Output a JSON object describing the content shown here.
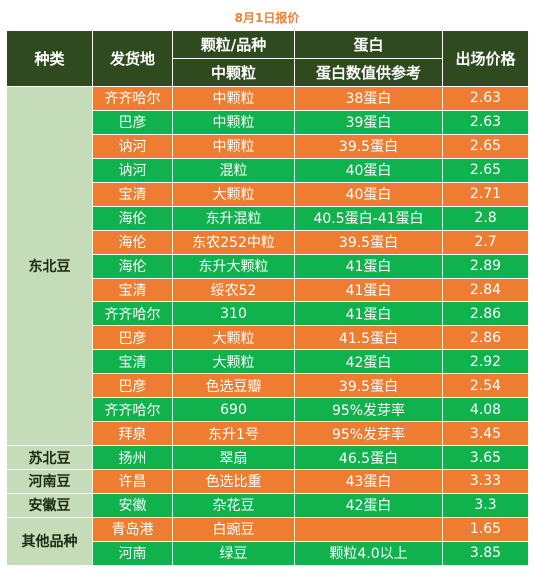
{
  "title": "8月1日报价",
  "header": {
    "type": "种类",
    "origin": "发货地",
    "grain_top": "颗粒/品种",
    "grain_sub": "中颗粒",
    "protein_top": "蛋白",
    "protein_sub": "蛋白数值供参考",
    "price": "出场价格"
  },
  "groups": [
    {
      "category": "东北豆",
      "rows": [
        {
          "origin": "齐齐哈尔",
          "grain": "中颗粒",
          "protein": "38蛋白",
          "price": "2.63",
          "color": "orange"
        },
        {
          "origin": "巴彦",
          "grain": "中颗粒",
          "protein": "39蛋白",
          "price": "2.63",
          "color": "green"
        },
        {
          "origin": "讷河",
          "grain": "中颗粒",
          "protein": "39.5蛋白",
          "price": "2.65",
          "color": "orange"
        },
        {
          "origin": "讷河",
          "grain": "混粒",
          "protein": "40蛋白",
          "price": "2.65",
          "color": "green"
        },
        {
          "origin": "宝清",
          "grain": "大颗粒",
          "protein": "40蛋白",
          "price": "2.71",
          "color": "orange"
        },
        {
          "origin": "海伦",
          "grain": "东升混粒",
          "protein": "40.5蛋白-41蛋白",
          "price": "2.8",
          "color": "green"
        },
        {
          "origin": "海伦",
          "grain": "东农252中粒",
          "protein": "39.5蛋白",
          "price": "2.7",
          "color": "orange"
        },
        {
          "origin": "海伦",
          "grain": "东升大颗粒",
          "protein": "41蛋白",
          "price": "2.89",
          "color": "green"
        },
        {
          "origin": "宝清",
          "grain": "绥农52",
          "protein": "41蛋白",
          "price": "2.84",
          "color": "orange"
        },
        {
          "origin": "齐齐哈尔",
          "grain": "310",
          "protein": "41蛋白",
          "price": "2.86",
          "color": "green"
        },
        {
          "origin": "巴彦",
          "grain": "大颗粒",
          "protein": "41.5蛋白",
          "price": "2.86",
          "color": "orange"
        },
        {
          "origin": "宝清",
          "grain": "大颗粒",
          "protein": "42蛋白",
          "price": "2.92",
          "color": "green"
        },
        {
          "origin": "巴彦",
          "grain": "色选豆瓣",
          "protein": "39.5蛋白",
          "price": "2.54",
          "color": "orange"
        },
        {
          "origin": "齐齐哈尔",
          "grain": "690",
          "protein": "95%发芽率",
          "price": "4.08",
          "color": "green"
        },
        {
          "origin": "拜泉",
          "grain": "东升1号",
          "protein": "95%发芽率",
          "price": "3.45",
          "color": "orange"
        }
      ]
    },
    {
      "category": "苏北豆",
      "rows": [
        {
          "origin": "扬州",
          "grain": "翠扇",
          "protein": "46.5蛋白",
          "price": "3.65",
          "color": "green"
        }
      ]
    },
    {
      "category": "河南豆",
      "rows": [
        {
          "origin": "许昌",
          "grain": "色选比重",
          "protein": "43蛋白",
          "price": "3.33",
          "color": "orange"
        }
      ]
    },
    {
      "category": "安徽豆",
      "rows": [
        {
          "origin": "安徽",
          "grain": "杂花豆",
          "protein": "42蛋白",
          "price": "3.3",
          "color": "green"
        }
      ]
    },
    {
      "category": "其他品种",
      "rows": [
        {
          "origin": "青岛港",
          "grain": "白豌豆",
          "protein": "",
          "price": "1.65",
          "color": "orange"
        },
        {
          "origin": "河南",
          "grain": "绿豆",
          "protein": "颗粒4.0以上",
          "price": "3.85",
          "color": "green"
        }
      ]
    }
  ]
}
